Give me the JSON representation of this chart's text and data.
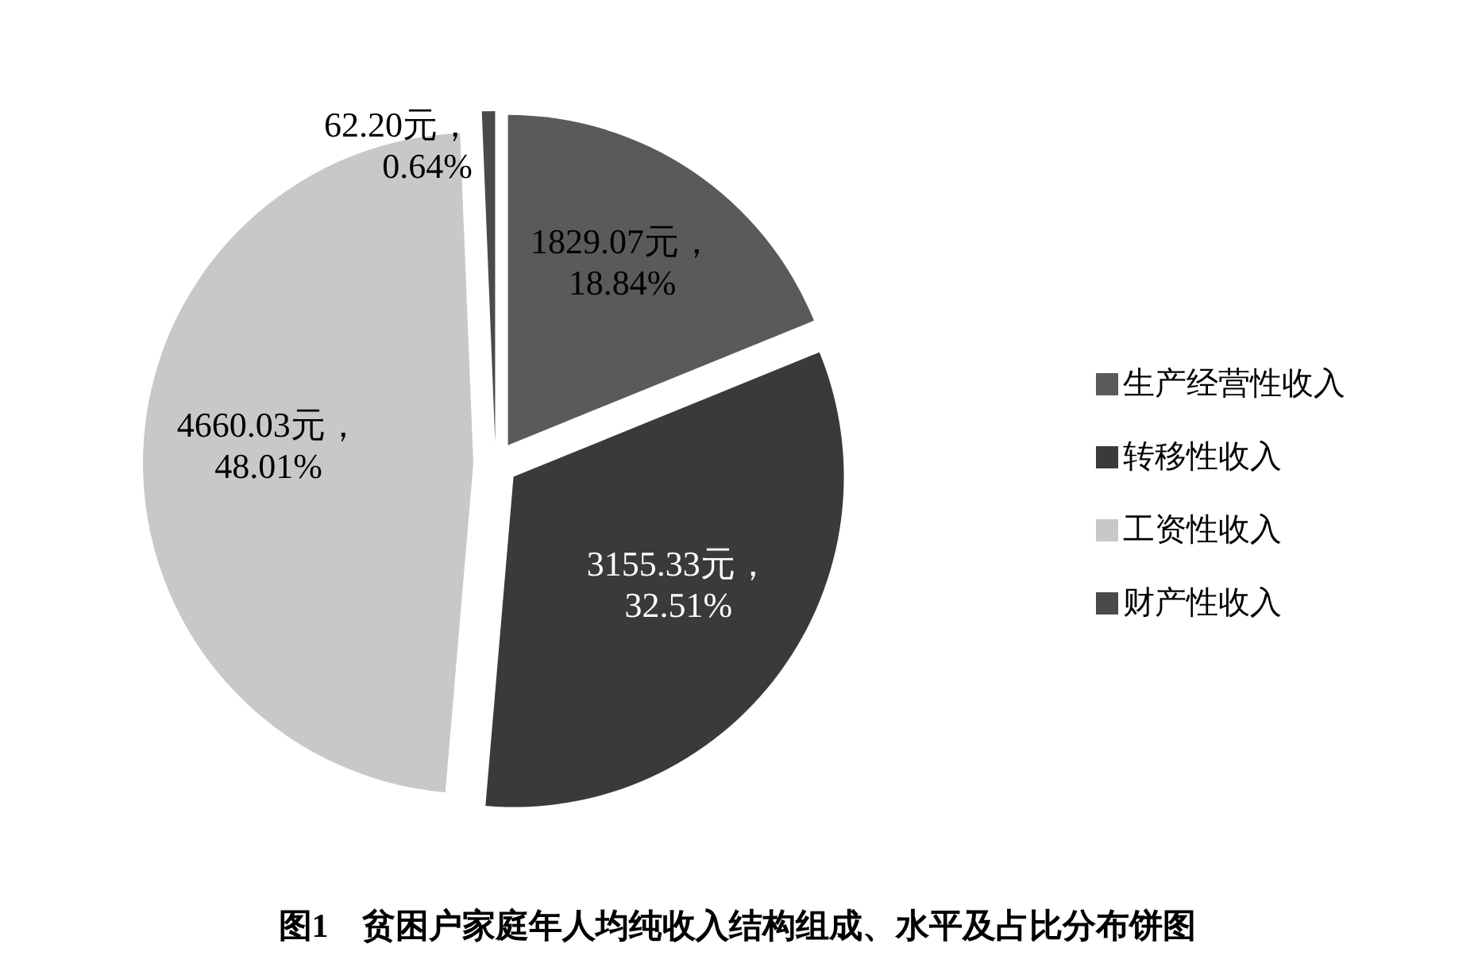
{
  "chart_data": {
    "type": "pie",
    "title": "图1　贫困户家庭年人均纯收入结构组成、水平及占比分布饼图",
    "categories": [
      "生产经营性收入",
      "转移性收入",
      "工资性收入",
      "财产性收入"
    ],
    "values": [
      1829.07,
      3155.33,
      4660.03,
      62.2
    ],
    "value_labels": [
      "1829.07元，18.84%",
      "3155.33元，32.51%",
      "4660.03元，48.01%",
      "62.20元，0.64%"
    ],
    "colors": [
      "#5a5a5a",
      "#3a3a3a",
      "#c8c8c8",
      "#4a4a4a"
    ],
    "legend": "right"
  }
}
